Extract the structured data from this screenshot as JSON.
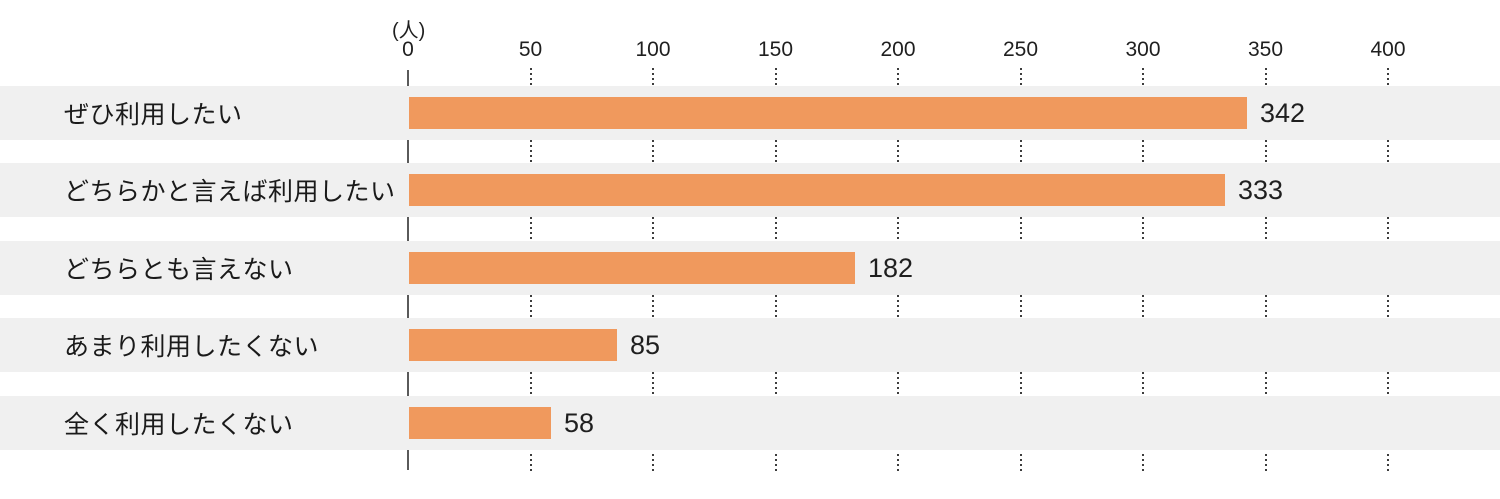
{
  "chart_data": {
    "type": "bar",
    "orientation": "horizontal",
    "title": "",
    "unit_label": "(人)",
    "categories": [
      "ぜひ利用したい",
      "どちらかと言えば利用したい",
      "どちらとも言えない",
      "あまり利用したくない",
      "全く利用したくない"
    ],
    "values": [
      342,
      333,
      182,
      85,
      58
    ],
    "ticks": [
      "0",
      "50",
      "100",
      "150",
      "200",
      "250",
      "300",
      "350",
      "400"
    ],
    "tick_values": [
      0,
      50,
      100,
      150,
      200,
      250,
      300,
      350,
      400
    ],
    "xlim": [
      0,
      445
    ],
    "value_labels": [
      "342",
      "333",
      "182",
      "85",
      "58"
    ],
    "legend": "none",
    "grid": "dotted-vertical-in-gaps",
    "colors": {
      "bar": "#f0995d",
      "row_band": "#f0f0f0",
      "axis_line": "#5a5a5a",
      "gridline_dots": "#3d3d3d",
      "text": "#1f1f1f",
      "background": "#ffffff"
    }
  }
}
